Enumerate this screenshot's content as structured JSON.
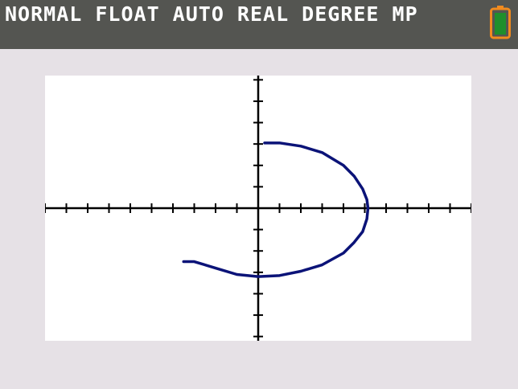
{
  "status_bar": {
    "text": "NORMAL FLOAT AUTO REAL DEGREE MP",
    "battery_icon": "battery-full-icon",
    "battery_color": "#f28b1e",
    "battery_fill_color": "#1f8f2c",
    "background_color": "#545551"
  },
  "screen": {
    "background_color": "#e6e1e6",
    "graph_background_color": "#ffffff",
    "axis_color": "#000000",
    "curve_color": "#0b1378"
  },
  "chart_data": {
    "type": "line",
    "title": "",
    "xlabel": "",
    "ylabel": "",
    "xlim": [
      -10,
      10
    ],
    "ylim": [
      -6.2,
      6.2
    ],
    "xtick_step": 1,
    "ytick_step": 1,
    "grid": false,
    "series": [
      {
        "x": [
          0.3,
          1,
          2,
          3,
          4,
          4.5,
          4.9,
          5.1,
          5.15,
          5.1,
          4.9,
          4.5,
          4,
          3,
          2,
          1,
          0,
          -1,
          -2,
          -3,
          -3.5
        ],
        "y": [
          3.05,
          3.05,
          2.9,
          2.6,
          2.0,
          1.5,
          0.9,
          0.4,
          0,
          -0.5,
          -1.1,
          -1.6,
          -2.1,
          -2.65,
          -2.95,
          -3.15,
          -3.2,
          -3.1,
          -2.8,
          -2.5,
          -2.5
        ]
      }
    ]
  }
}
